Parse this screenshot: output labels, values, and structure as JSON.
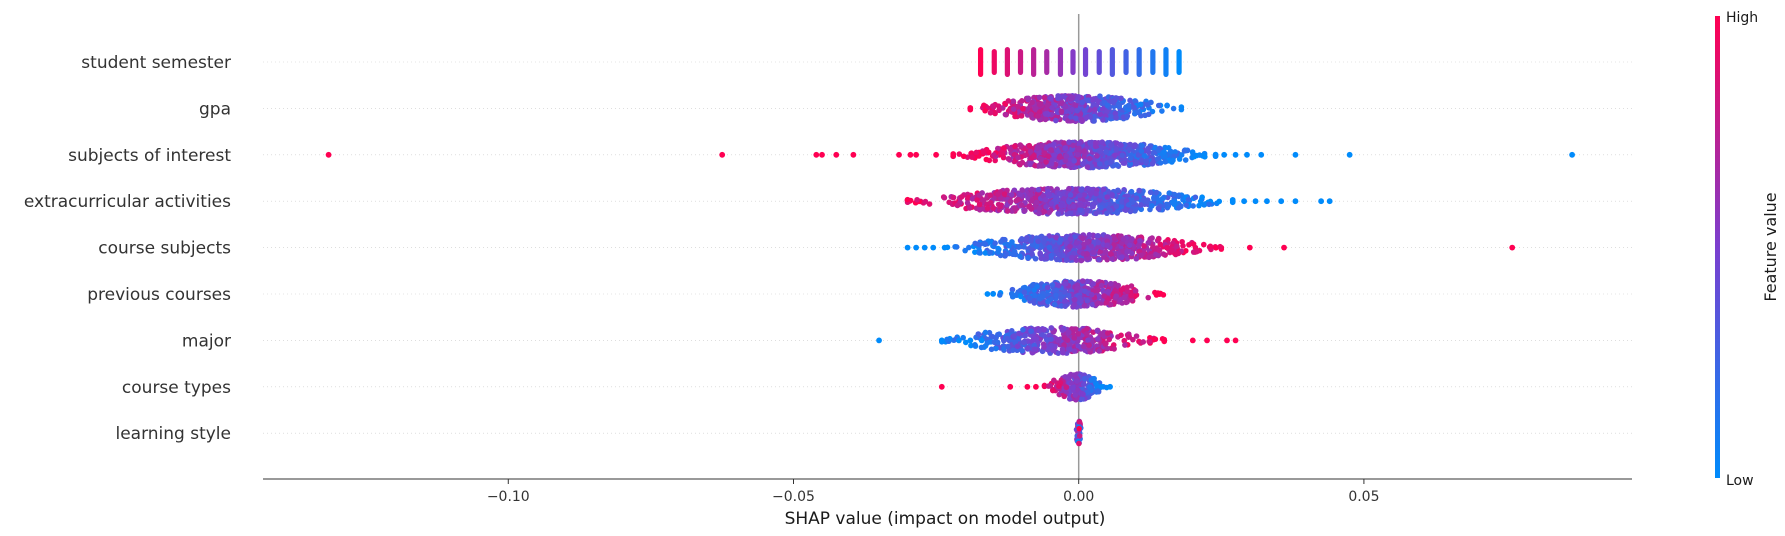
{
  "chart_data": {
    "type": "scatter",
    "subtype": "shap-beeswarm",
    "title": "",
    "xlabel": "SHAP value (impact on model output)",
    "xlim": [
      -0.143,
      0.097
    ],
    "xticks": [
      -0.1,
      -0.05,
      0.0,
      0.05
    ],
    "xtick_labels": [
      "−0.10",
      "−0.05",
      "0.00",
      "0.05"
    ],
    "colorbar": {
      "label": "Feature value",
      "high_label": "High",
      "low_label": "Low",
      "low_color": "#008bfb",
      "high_color": "#ff0052"
    },
    "features": [
      {
        "name": "student semester",
        "min": -0.018,
        "max": 0.018,
        "discrete_values": [
          -0.0172,
          -0.0148,
          -0.0125,
          -0.0102,
          -0.0079,
          -0.0056,
          -0.0032,
          -0.001,
          0.0012,
          0.0036,
          0.0059,
          0.0083,
          0.0106,
          0.013,
          0.0153,
          0.0176
        ],
        "outliers": []
      },
      {
        "name": "gpa",
        "min": -0.019,
        "max": 0.018,
        "outliers": []
      },
      {
        "name": "subjects of interest",
        "min": -0.022,
        "max": 0.024,
        "outliers": [
          {
            "x": -0.1315,
            "color": "high"
          },
          {
            "x": -0.0625,
            "color": "high"
          },
          {
            "x": -0.046,
            "color": "high"
          },
          {
            "x": -0.045,
            "color": "high"
          },
          {
            "x": -0.0425,
            "color": "high"
          },
          {
            "x": -0.0395,
            "color": "high"
          },
          {
            "x": -0.0315,
            "color": "high"
          },
          {
            "x": -0.0295,
            "color": "high"
          },
          {
            "x": -0.0285,
            "color": "high"
          },
          {
            "x": -0.025,
            "color": "high"
          },
          {
            "x": 0.0255,
            "color": "low"
          },
          {
            "x": 0.0275,
            "color": "low"
          },
          {
            "x": 0.0295,
            "color": "low"
          },
          {
            "x": 0.032,
            "color": "low"
          },
          {
            "x": 0.038,
            "color": "low"
          },
          {
            "x": 0.0475,
            "color": "low"
          },
          {
            "x": 0.0865,
            "color": "low"
          }
        ]
      },
      {
        "name": "extracurricular activities",
        "min": -0.03,
        "max": 0.027,
        "outliers": [
          {
            "x": 0.029,
            "color": "low"
          },
          {
            "x": 0.031,
            "color": "low"
          },
          {
            "x": 0.033,
            "color": "low"
          },
          {
            "x": 0.0355,
            "color": "low"
          },
          {
            "x": 0.038,
            "color": "low"
          },
          {
            "x": 0.0425,
            "color": "low"
          },
          {
            "x": 0.044,
            "color": "low"
          }
        ]
      },
      {
        "name": "course subjects",
        "min": -0.023,
        "max": 0.025,
        "outliers": [
          {
            "x": -0.03,
            "color": "low"
          },
          {
            "x": -0.0285,
            "color": "low"
          },
          {
            "x": -0.027,
            "color": "low"
          },
          {
            "x": -0.0255,
            "color": "low"
          },
          {
            "x": -0.0235,
            "color": "low"
          },
          {
            "x": 0.03,
            "color": "high"
          },
          {
            "x": 0.036,
            "color": "high"
          },
          {
            "x": 0.076,
            "color": "high"
          }
        ]
      },
      {
        "name": "previous courses",
        "min": -0.015,
        "max": 0.015,
        "outliers": [
          {
            "x": -0.016,
            "color": "low"
          }
        ]
      },
      {
        "name": "major",
        "min": -0.024,
        "max": 0.015,
        "outliers": [
          {
            "x": -0.035,
            "color": "low"
          },
          {
            "x": -0.024,
            "color": "low"
          },
          {
            "x": -0.021,
            "color": "low"
          },
          {
            "x": -0.019,
            "color": "low"
          },
          {
            "x": -0.017,
            "color": "low"
          },
          {
            "x": 0.02,
            "color": "high"
          },
          {
            "x": 0.0225,
            "color": "high"
          },
          {
            "x": 0.026,
            "color": "high"
          },
          {
            "x": 0.0275,
            "color": "high"
          }
        ]
      },
      {
        "name": "course types",
        "min": -0.006,
        "max": 0.005,
        "outliers": [
          {
            "x": -0.024,
            "color": "high"
          },
          {
            "x": -0.012,
            "color": "high"
          },
          {
            "x": -0.009,
            "color": "high"
          },
          {
            "x": -0.0075,
            "color": "high"
          },
          {
            "x": 0.004,
            "color": "low"
          },
          {
            "x": 0.0055,
            "color": "low"
          }
        ]
      },
      {
        "name": "learning style",
        "min": -0.0005,
        "max": 0.0005,
        "outliers": []
      }
    ]
  }
}
